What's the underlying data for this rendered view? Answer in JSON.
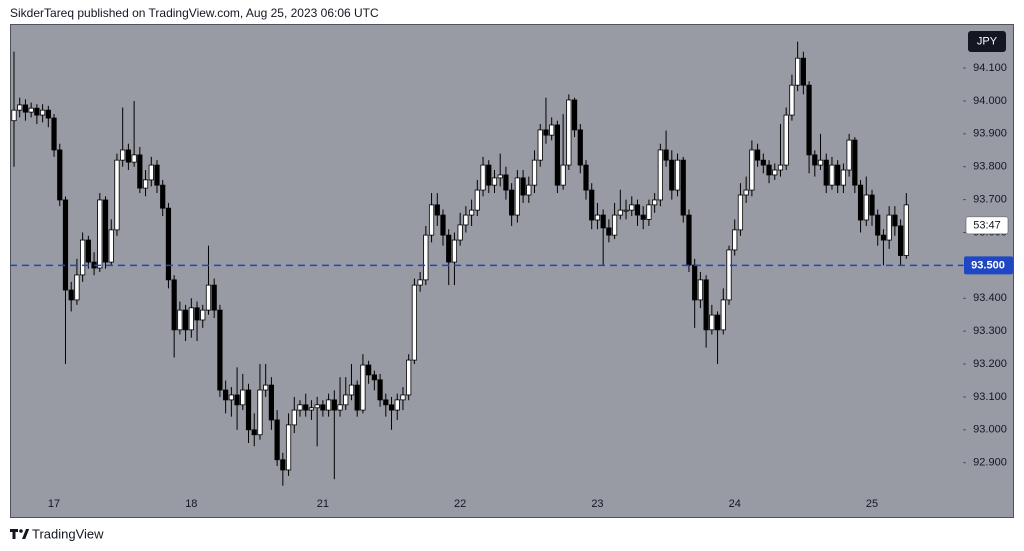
{
  "header": {
    "text": "SikderTareq published on TradingView.com, Aug 25, 2023 06:06 UTC"
  },
  "footer": {
    "brand": "TradingView"
  },
  "chart_data": {
    "type": "candlestick",
    "currency": "JPY",
    "countdown": "53:47",
    "up_color": "#ffffff",
    "down_color": "#000000",
    "wick_color": "#000000",
    "categories": [
      null,
      null,
      null,
      null,
      null,
      null,
      null,
      "17",
      null,
      null,
      null,
      null,
      null,
      null,
      null,
      null,
      null,
      null,
      null,
      null,
      null,
      null,
      null,
      null,
      null,
      null,
      null,
      null,
      null,
      null,
      null,
      "18",
      null,
      null,
      null,
      null,
      null,
      null,
      null,
      null,
      null,
      null,
      null,
      null,
      null,
      null,
      null,
      null,
      null,
      null,
      null,
      null,
      null,
      null,
      "21",
      null,
      null,
      null,
      null,
      null,
      null,
      null,
      null,
      null,
      null,
      null,
      null,
      null,
      null,
      null,
      null,
      null,
      null,
      null,
      null,
      null,
      null,
      null,
      "22",
      null,
      null,
      null,
      null,
      null,
      null,
      null,
      null,
      null,
      null,
      null,
      null,
      null,
      null,
      null,
      null,
      null,
      null,
      null,
      null,
      null,
      null,
      null,
      "23",
      null,
      null,
      null,
      null,
      null,
      null,
      null,
      null,
      null,
      null,
      null,
      null,
      null,
      null,
      null,
      null,
      null,
      null,
      null,
      null,
      null,
      null,
      null,
      "24",
      null,
      null,
      null,
      null,
      null,
      null,
      null,
      null,
      null,
      null,
      null,
      null,
      null,
      null,
      null,
      null,
      null,
      null,
      null,
      null,
      null,
      null,
      null,
      "25",
      null,
      null,
      null,
      null,
      null,
      null
    ],
    "open": [
      93.94,
      93.972,
      93.988,
      93.966,
      93.978,
      93.957,
      93.972,
      93.948,
      93.851,
      93.699,
      93.425,
      93.395,
      93.471,
      93.577,
      93.51,
      93.492,
      93.699,
      93.51,
      93.608,
      93.82,
      93.851,
      93.814,
      93.836,
      93.735,
      93.76,
      93.805,
      93.744,
      93.674,
      93.456,
      93.304,
      93.364,
      93.304,
      93.371,
      93.334,
      93.364,
      93.44,
      93.364,
      93.121,
      93.091,
      93.106,
      93.076,
      93.121,
      93.0,
      92.985,
      93.121,
      93.136,
      93.03,
      92.909,
      92.878,
      93.015,
      93.06,
      93.076,
      93.06,
      93.067,
      93.076,
      93.06,
      93.091,
      93.06,
      93.076,
      93.106,
      93.136,
      93.06,
      93.197,
      93.167,
      93.152,
      93.091,
      93.076,
      93.06,
      93.091,
      93.106,
      93.212,
      93.44,
      93.456,
      93.592,
      93.684,
      93.653,
      93.592,
      93.51,
      93.577,
      93.623,
      93.653,
      93.668,
      93.729,
      93.805,
      93.744,
      93.766,
      93.775,
      93.729,
      93.653,
      93.766,
      93.714,
      93.744,
      93.82,
      93.912,
      93.896,
      93.927,
      93.744,
      93.805,
      94.003,
      93.912,
      93.805,
      93.729,
      93.638,
      93.653,
      93.614,
      93.592,
      93.653,
      93.668,
      93.668,
      93.684,
      93.653,
      93.64,
      93.684,
      93.699,
      93.851,
      93.82,
      93.729,
      93.82,
      93.653,
      93.501,
      93.395,
      93.456,
      93.304,
      93.349,
      93.304,
      93.395,
      93.547,
      93.608,
      93.714,
      93.729,
      93.851,
      93.82,
      93.805,
      93.775,
      93.79,
      93.805,
      93.957,
      94.048,
      94.13,
      94.048,
      93.836,
      93.805,
      93.82,
      93.744,
      93.805,
      93.744,
      93.79,
      93.881,
      93.744,
      93.638,
      93.714,
      93.653,
      93.592,
      93.577,
      93.653,
      93.62,
      93.53
    ],
    "high": [
      94.15,
      94.01,
      94.005,
      93.995,
      93.99,
      93.99,
      93.985,
      93.96,
      93.87,
      93.71,
      93.45,
      93.52,
      93.6,
      93.59,
      93.54,
      93.72,
      93.71,
      93.64,
      93.84,
      93.98,
      93.87,
      94.0,
      93.86,
      93.79,
      93.83,
      93.82,
      93.76,
      93.69,
      93.47,
      93.39,
      93.38,
      93.4,
      93.39,
      93.38,
      93.56,
      93.46,
      93.38,
      93.15,
      93.13,
      93.19,
      93.17,
      93.14,
      93.05,
      93.2,
      93.2,
      93.16,
      93.06,
      92.93,
      93.05,
      93.1,
      93.09,
      93.11,
      93.09,
      93.1,
      93.09,
      93.11,
      93.12,
      93.16,
      93.16,
      93.2,
      93.15,
      93.23,
      93.21,
      93.18,
      93.17,
      93.11,
      93.1,
      93.11,
      93.13,
      93.23,
      93.46,
      93.48,
      93.62,
      93.72,
      93.72,
      93.67,
      93.61,
      93.6,
      93.66,
      93.68,
      93.7,
      93.76,
      93.83,
      93.82,
      93.79,
      93.84,
      93.8,
      93.75,
      93.79,
      93.79,
      93.77,
      93.85,
      93.93,
      94.01,
      93.95,
      93.94,
      93.96,
      94.02,
      94.01,
      93.93,
      93.82,
      93.75,
      93.69,
      93.67,
      93.64,
      93.69,
      93.73,
      93.7,
      93.71,
      93.7,
      93.68,
      93.7,
      93.72,
      93.87,
      93.91,
      93.85,
      93.84,
      93.83,
      93.67,
      93.52,
      93.48,
      93.47,
      93.38,
      93.36,
      93.43,
      93.56,
      93.64,
      93.75,
      93.77,
      93.88,
      93.87,
      93.84,
      93.82,
      93.81,
      93.93,
      93.98,
      94.08,
      94.18,
      94.15,
      94.06,
      93.85,
      93.9,
      93.84,
      93.83,
      93.82,
      93.81,
      93.9,
      93.89,
      93.76,
      93.77,
      93.73,
      93.67,
      93.61,
      93.68,
      93.68,
      93.64,
      93.72
    ],
    "low": [
      93.8,
      93.95,
      93.94,
      93.95,
      93.93,
      93.935,
      93.92,
      93.83,
      93.68,
      93.2,
      93.36,
      93.38,
      93.45,
      93.49,
      93.47,
      93.48,
      93.49,
      93.5,
      93.59,
      93.8,
      93.79,
      93.8,
      93.72,
      93.71,
      93.74,
      93.72,
      93.65,
      93.43,
      93.22,
      93.29,
      93.27,
      93.28,
      93.27,
      93.31,
      93.35,
      93.34,
      93.1,
      93.05,
      93.04,
      93.0,
      93.06,
      92.96,
      92.95,
      92.97,
      93.1,
      93.0,
      92.89,
      92.83,
      92.86,
      92.99,
      93.04,
      93.04,
      93.03,
      92.95,
      93.04,
      93.04,
      92.85,
      93.04,
      93.06,
      93.09,
      93.04,
      93.05,
      93.14,
      93.12,
      93.07,
      93.04,
      93.0,
      93.03,
      93.06,
      93.09,
      93.2,
      93.42,
      93.44,
      93.57,
      93.62,
      93.56,
      93.44,
      93.44,
      93.56,
      93.6,
      93.62,
      93.65,
      93.71,
      93.72,
      93.72,
      93.74,
      93.7,
      93.62,
      93.63,
      93.69,
      93.69,
      93.72,
      93.8,
      93.87,
      93.88,
      93.72,
      93.73,
      93.79,
      93.89,
      93.78,
      93.7,
      93.61,
      93.61,
      93.5,
      93.57,
      93.58,
      93.64,
      93.64,
      93.65,
      93.62,
      93.61,
      93.62,
      93.66,
      93.68,
      93.8,
      93.7,
      93.71,
      93.63,
      93.48,
      93.31,
      93.37,
      93.25,
      93.29,
      93.2,
      93.29,
      93.38,
      93.53,
      93.59,
      93.69,
      93.71,
      93.8,
      93.78,
      93.75,
      93.76,
      93.77,
      93.79,
      93.94,
      94.03,
      94.02,
      93.78,
      93.77,
      93.79,
      93.72,
      93.73,
      93.72,
      93.72,
      93.77,
      93.72,
      93.6,
      93.62,
      93.62,
      93.56,
      93.5,
      93.55,
      93.59,
      93.5,
      93.52
    ],
    "close": [
      93.972,
      93.988,
      93.966,
      93.978,
      93.957,
      93.972,
      93.948,
      93.851,
      93.699,
      93.425,
      93.395,
      93.471,
      93.577,
      93.51,
      93.492,
      93.699,
      93.51,
      93.608,
      93.82,
      93.851,
      93.814,
      93.836,
      93.735,
      93.76,
      93.805,
      93.744,
      93.674,
      93.456,
      93.304,
      93.364,
      93.304,
      93.371,
      93.334,
      93.364,
      93.44,
      93.364,
      93.121,
      93.091,
      93.106,
      93.076,
      93.121,
      93.0,
      92.985,
      93.121,
      93.136,
      93.03,
      92.909,
      92.878,
      93.015,
      93.06,
      93.076,
      93.06,
      93.067,
      93.076,
      93.06,
      93.091,
      93.06,
      93.076,
      93.106,
      93.136,
      93.06,
      93.197,
      93.167,
      93.152,
      93.091,
      93.076,
      93.06,
      93.091,
      93.106,
      93.212,
      93.44,
      93.456,
      93.592,
      93.684,
      93.653,
      93.592,
      93.51,
      93.577,
      93.623,
      93.653,
      93.668,
      93.729,
      93.805,
      93.744,
      93.766,
      93.775,
      93.729,
      93.653,
      93.766,
      93.714,
      93.744,
      93.82,
      93.912,
      93.896,
      93.927,
      93.744,
      93.805,
      94.003,
      93.912,
      93.805,
      93.729,
      93.638,
      93.653,
      93.614,
      93.592,
      93.653,
      93.668,
      93.668,
      93.684,
      93.653,
      93.64,
      93.684,
      93.699,
      93.851,
      93.82,
      93.729,
      93.82,
      93.653,
      93.501,
      93.395,
      93.456,
      93.304,
      93.349,
      93.304,
      93.395,
      93.547,
      93.608,
      93.714,
      93.729,
      93.851,
      93.82,
      93.805,
      93.775,
      93.79,
      93.805,
      93.957,
      94.048,
      94.13,
      94.048,
      93.836,
      93.805,
      93.82,
      93.744,
      93.805,
      93.744,
      93.79,
      93.881,
      93.744,
      93.638,
      93.714,
      93.653,
      93.592,
      93.577,
      93.653,
      93.62,
      93.53,
      93.684
    ],
    "ylim": [
      92.817,
      94.234
    ],
    "yticks": [
      {
        "value": 92.9,
        "label": "92.900"
      },
      {
        "value": 93.0,
        "label": "93.000"
      },
      {
        "value": 93.1,
        "label": "93.100"
      },
      {
        "value": 93.2,
        "label": "93.200"
      },
      {
        "value": 93.3,
        "label": "93.300"
      },
      {
        "value": 93.4,
        "label": "93.400"
      },
      {
        "value": 93.5,
        "label": "93.500"
      },
      {
        "value": 93.6,
        "label": "93.600"
      },
      {
        "value": 93.7,
        "label": "93.700"
      },
      {
        "value": 93.8,
        "label": "93.800"
      },
      {
        "value": 93.9,
        "label": "93.900"
      },
      {
        "value": 94.0,
        "label": "94.000"
      },
      {
        "value": 94.1,
        "label": "94.100"
      }
    ],
    "price_line": {
      "value": 93.5,
      "label": "93.500",
      "color": "#1f47c4"
    },
    "grid": false
  }
}
